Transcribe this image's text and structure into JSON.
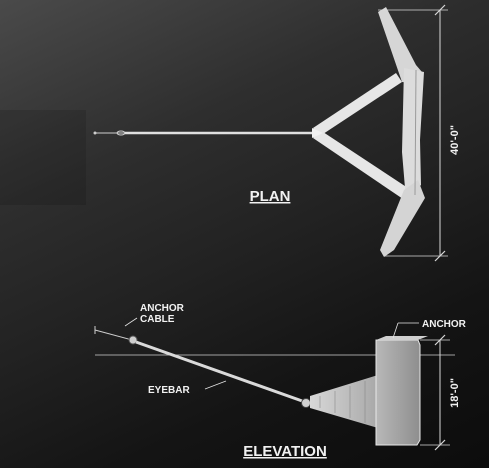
{
  "plan": {
    "title": "PLAN",
    "width_dimension": "40'-0\""
  },
  "elevation": {
    "title": "ELEVATION",
    "height_dimension": "18'-0\"",
    "labels": {
      "anchor_cable_line1": "ANCHOR",
      "anchor_cable_line2": "CABLE",
      "anchor": "ANCHOR",
      "eyebar": "EYEBAR"
    }
  }
}
